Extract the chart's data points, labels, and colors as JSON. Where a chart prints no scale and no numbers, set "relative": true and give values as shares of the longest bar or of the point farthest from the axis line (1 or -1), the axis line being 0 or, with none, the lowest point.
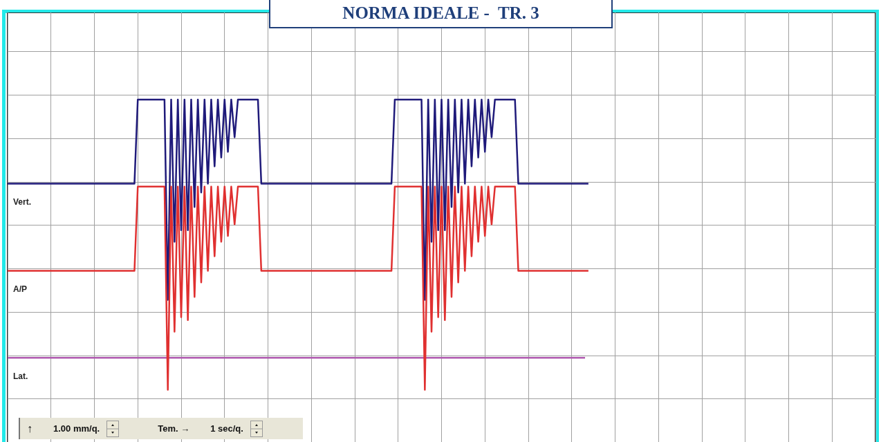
{
  "chart_data": {
    "type": "line",
    "title": "NORMA IDEALE -  TR. 3",
    "relative": true,
    "grid": true,
    "legend": false,
    "tick_labels": false,
    "categories": [
      null,
      null,
      null,
      null,
      null,
      null,
      null,
      null,
      null,
      null,
      null,
      null,
      null,
      null,
      null,
      null,
      null,
      null,
      null,
      null,
      null,
      null,
      null,
      null,
      null,
      null,
      null,
      null,
      null,
      null,
      null,
      null,
      null,
      null,
      null,
      null,
      null,
      null,
      null,
      null,
      null,
      null,
      null,
      null,
      null,
      null,
      null,
      null,
      null,
      null,
      null,
      null,
      null,
      null,
      null,
      null,
      null,
      null,
      null,
      null,
      null,
      null,
      null,
      null,
      null,
      null,
      null,
      null,
      null,
      null,
      null,
      null,
      null,
      null,
      null,
      null,
      null,
      null,
      null,
      null,
      null,
      null,
      null,
      null,
      null,
      null,
      null,
      null,
      null,
      null,
      null,
      null,
      null,
      null,
      null,
      null,
      null,
      null,
      null,
      null,
      null,
      null,
      null,
      null,
      null,
      null,
      null,
      null,
      null,
      null,
      null,
      null,
      null,
      null,
      null,
      null,
      null,
      null,
      null,
      null,
      null,
      null,
      null,
      null,
      null,
      null,
      null,
      null,
      null,
      null,
      null,
      null,
      null,
      null,
      null,
      null,
      null,
      null,
      null,
      null,
      null,
      null,
      null,
      null,
      null,
      null,
      null,
      null,
      null,
      null,
      null,
      null,
      null,
      null,
      null,
      null,
      null,
      null,
      null,
      null,
      null,
      null,
      null,
      null,
      null,
      null,
      null,
      null,
      null,
      null,
      null,
      null,
      null,
      null,
      null,
      null,
      null,
      null,
      null,
      null,
      null,
      null,
      null,
      null,
      null,
      null,
      null,
      null,
      null,
      null,
      null,
      null,
      null,
      null,
      null,
      null,
      null,
      null,
      null,
      null,
      null,
      null,
      null,
      null,
      null,
      null,
      null,
      null,
      null,
      null,
      null,
      null,
      null,
      null,
      null,
      null,
      null,
      null,
      null,
      null,
      null,
      null,
      null,
      null,
      null,
      null,
      null,
      null,
      null,
      null,
      null,
      null,
      null,
      null,
      null,
      null,
      null,
      null,
      null,
      null,
      null,
      null,
      null,
      null,
      null,
      null,
      null,
      null,
      null,
      null,
      null,
      null,
      null,
      null,
      null,
      null,
      null,
      null,
      null,
      null,
      null
    ],
    "annotations": [
      "↑",
      "1.00 mm/q.",
      "Tem. →",
      "1 sec/q."
    ],
    "series": [
      {
        "name": "A/P",
        "color": "#e03030",
        "values": [
          0.41,
          0.41,
          0.41,
          0.41,
          0.41,
          0.41,
          0.41,
          0.41,
          0.41,
          0.41,
          0.41,
          0.41,
          0.41,
          0.41,
          0.41,
          0.41,
          0.41,
          0.41,
          0.41,
          0.41,
          0.41,
          0.41,
          0.41,
          0.41,
          0.41,
          0.41,
          0.41,
          0.41,
          0.41,
          0.41,
          0.41,
          0.41,
          0.41,
          0.41,
          0.41,
          0.41,
          0.41,
          0.41,
          0.41,
          0.7,
          0.7,
          0.7,
          0.7,
          0.7,
          0.7,
          0.7,
          0.7,
          0.7,
          0,
          0.7,
          0.2,
          0.7,
          0.25,
          0.7,
          0.24,
          0.7,
          0.32,
          0.7,
          0.37,
          0.7,
          0.41,
          0.7,
          0.46,
          0.7,
          0.51,
          0.7,
          0.53,
          0.7,
          0.57,
          0.7,
          0.7,
          0.7,
          0.7,
          0.7,
          0.7,
          0.7,
          0.41,
          0.41,
          0.41,
          0.41,
          0.41,
          0.41,
          0.41,
          0.41,
          0.41,
          0.41,
          0.41,
          0.41,
          0.41,
          0.41,
          0.41,
          0.41,
          0.41,
          0.41,
          0.41,
          0.41,
          0.41,
          0.41,
          0.41,
          0.41,
          0.41,
          0.41,
          0.41,
          0.41,
          0.41,
          0.41,
          0.41,
          0.41,
          0.41,
          0.41,
          0.41,
          0.41,
          0.41,
          0.41,
          0.41,
          0.41,
          0.7,
          0.7,
          0.7,
          0.7,
          0.7,
          0.7,
          0.7,
          0.7,
          0.7,
          0,
          0.7,
          0.2,
          0.7,
          0.25,
          0.7,
          0.24,
          0.7,
          0.32,
          0.7,
          0.37,
          0.7,
          0.41,
          0.7,
          0.46,
          0.7,
          0.51,
          0.7,
          0.53,
          0.7,
          0.57,
          0.7,
          0.7,
          0.7,
          0.7,
          0.7,
          0.7,
          0.7,
          0.41,
          0.41,
          0.41,
          0.41,
          0.41,
          0.41,
          0.41,
          0.41,
          0.41,
          0.41,
          0.41,
          0.41,
          0.41,
          0.41,
          0.41,
          0.41,
          0.41,
          0.41,
          0.41,
          0.41,
          0.41,
          0.41,
          null,
          null,
          null,
          null,
          null,
          null,
          null,
          null,
          null,
          null,
          null,
          null,
          null,
          null,
          null,
          null,
          null,
          null,
          null,
          null,
          null,
          null,
          null,
          null,
          null,
          null,
          null,
          null,
          null,
          null,
          null,
          null,
          null,
          null,
          null,
          null,
          null,
          null,
          null,
          null,
          null,
          null,
          null,
          null,
          null,
          null,
          null,
          null,
          null,
          null,
          null,
          null,
          null,
          null,
          null,
          null,
          null,
          null,
          null,
          null,
          null,
          null,
          null,
          null,
          null,
          null,
          null,
          null,
          null,
          null,
          null,
          null,
          null,
          null,
          null,
          null,
          null,
          null,
          null,
          null,
          null,
          null,
          null,
          null,
          null,
          null
        ]
      },
      {
        "name": "Vert.",
        "color": "#1f1a7a",
        "values": [
          0.71,
          0.71,
          0.71,
          0.71,
          0.71,
          0.71,
          0.71,
          0.71,
          0.71,
          0.71,
          0.71,
          0.71,
          0.71,
          0.71,
          0.71,
          0.71,
          0.71,
          0.71,
          0.71,
          0.71,
          0.71,
          0.71,
          0.71,
          0.71,
          0.71,
          0.71,
          0.71,
          0.71,
          0.71,
          0.71,
          0.71,
          0.71,
          0.71,
          0.71,
          0.71,
          0.71,
          0.71,
          0.71,
          0.71,
          1,
          1,
          1,
          1,
          1,
          1,
          1,
          1,
          1,
          0.31,
          1,
          0.51,
          1,
          0.55,
          1,
          0.55,
          1,
          0.63,
          1,
          0.68,
          1,
          0.71,
          1,
          0.77,
          1,
          0.8,
          1,
          0.82,
          1,
          0.87,
          1,
          1,
          1,
          1,
          1,
          1,
          1,
          0.71,
          0.71,
          0.71,
          0.71,
          0.71,
          0.71,
          0.71,
          0.71,
          0.71,
          0.71,
          0.71,
          0.71,
          0.71,
          0.71,
          0.71,
          0.71,
          0.71,
          0.71,
          0.71,
          0.71,
          0.71,
          0.71,
          0.71,
          0.71,
          0.71,
          0.71,
          0.71,
          0.71,
          0.71,
          0.71,
          0.71,
          0.71,
          0.71,
          0.71,
          0.71,
          0.71,
          0.71,
          0.71,
          0.71,
          0.71,
          1,
          1,
          1,
          1,
          1,
          1,
          1,
          1,
          1,
          0.31,
          1,
          0.51,
          1,
          0.55,
          1,
          0.55,
          1,
          0.63,
          1,
          0.68,
          1,
          0.71,
          1,
          0.77,
          1,
          0.8,
          1,
          0.82,
          1,
          0.87,
          1,
          1,
          1,
          1,
          1,
          1,
          1,
          0.71,
          0.71,
          0.71,
          0.71,
          0.71,
          0.71,
          0.71,
          0.71,
          0.71,
          0.71,
          0.71,
          0.71,
          0.71,
          0.71,
          0.71,
          0.71,
          0.71,
          0.71,
          0.71,
          0.71,
          0.71,
          0.71,
          null,
          null,
          null,
          null,
          null,
          null,
          null,
          null,
          null,
          null,
          null,
          null,
          null,
          null,
          null,
          null,
          null,
          null,
          null,
          null,
          null,
          null,
          null,
          null,
          null,
          null,
          null,
          null,
          null,
          null,
          null,
          null,
          null,
          null,
          null,
          null,
          null,
          null,
          null,
          null,
          null,
          null,
          null,
          null,
          null,
          null,
          null,
          null,
          null,
          null,
          null,
          null,
          null,
          null,
          null,
          null,
          null,
          null,
          null,
          null,
          null,
          null,
          null,
          null,
          null,
          null,
          null,
          null,
          null,
          null,
          null,
          null,
          null,
          null,
          null,
          null,
          null,
          null,
          null,
          null,
          null,
          null,
          null,
          null,
          null,
          null
        ]
      },
      {
        "name": "Lat.",
        "color": "#b05ab0",
        "values": [
          0.11,
          0.11,
          0.11,
          0.11,
          0.11,
          0.11,
          0.11,
          0.11,
          0.11,
          0.11,
          0.11,
          0.11,
          0.11,
          0.11,
          0.11,
          0.11,
          0.11,
          0.11,
          0.11,
          0.11,
          0.11,
          0.11,
          0.11,
          0.11,
          0.11,
          0.11,
          0.11,
          0.11,
          0.11,
          0.11,
          0.11,
          0.11,
          0.11,
          0.11,
          0.11,
          0.11,
          0.11,
          0.11,
          0.11,
          0.11,
          0.11,
          0.11,
          0.11,
          0.11,
          0.11,
          0.11,
          0.11,
          0.11,
          0.11,
          0.11,
          0.11,
          0.11,
          0.11,
          0.11,
          0.11,
          0.11,
          0.11,
          0.11,
          0.11,
          0.11,
          0.11,
          0.11,
          0.11,
          0.11,
          0.11,
          0.11,
          0.11,
          0.11,
          0.11,
          0.11,
          0.11,
          0.11,
          0.11,
          0.11,
          0.11,
          0.11,
          0.11,
          0.11,
          0.11,
          0.11,
          0.11,
          0.11,
          0.11,
          0.11,
          0.11,
          0.11,
          0.11,
          0.11,
          0.11,
          0.11,
          0.11,
          0.11,
          0.11,
          0.11,
          0.11,
          0.11,
          0.11,
          0.11,
          0.11,
          0.11,
          0.11,
          0.11,
          0.11,
          0.11,
          0.11,
          0.11,
          0.11,
          0.11,
          0.11,
          0.11,
          0.11,
          0.11,
          0.11,
          0.11,
          0.11,
          0.11,
          0.11,
          0.11,
          0.11,
          0.11,
          0.11,
          0.11,
          0.11,
          0.11,
          0.11,
          0.11,
          0.11,
          0.11,
          0.11,
          0.11,
          0.11,
          0.11,
          0.11,
          0.11,
          0.11,
          0.11,
          0.11,
          0.11,
          0.11,
          0.11,
          0.11,
          0.11,
          0.11,
          0.11,
          0.11,
          0.11,
          0.11,
          0.11,
          0.11,
          0.11,
          0.11,
          0.11,
          0.11,
          0.11,
          0.11,
          0.11,
          0.11,
          0.11,
          0.11,
          0.11,
          0.11,
          0.11,
          0.11,
          0.11,
          0.11,
          0.11,
          0.11,
          0.11,
          0.11,
          0.11,
          0.11,
          0.11,
          0.11,
          0.11,
          null,
          null,
          null,
          null,
          null,
          null,
          null,
          null,
          null,
          null,
          null,
          null,
          null,
          null,
          null,
          null,
          null,
          null,
          null,
          null,
          null,
          null,
          null,
          null,
          null,
          null,
          null,
          null,
          null,
          null,
          null,
          null,
          null,
          null,
          null,
          null,
          null,
          null,
          null,
          null,
          null,
          null,
          null,
          null,
          null,
          null,
          null,
          null,
          null,
          null,
          null,
          null,
          null,
          null,
          null,
          null,
          null,
          null,
          null,
          null,
          null,
          null,
          null,
          null,
          null,
          null,
          null,
          null,
          null,
          null,
          null,
          null,
          null,
          null,
          null,
          null,
          null,
          null,
          null,
          null,
          null,
          null,
          null,
          null,
          null,
          null,
          null
        ]
      }
    ]
  }
}
